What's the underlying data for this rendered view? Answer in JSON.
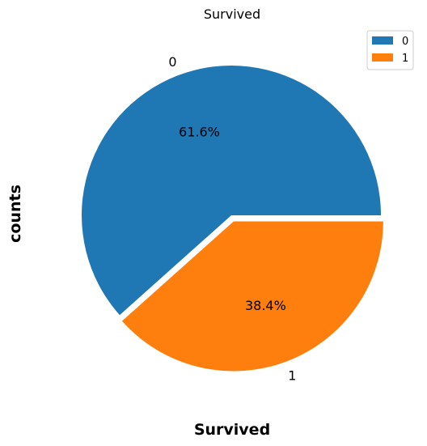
{
  "chart_data": {
    "type": "pie",
    "title": "Survived",
    "xlabel": "Survived",
    "ylabel": "counts",
    "categories": [
      "0",
      "1"
    ],
    "values": [
      61.6,
      38.4
    ],
    "percent_labels": [
      "61.6%",
      "38.4%"
    ],
    "colors": [
      "#1f77b4",
      "#ff7f0e"
    ],
    "legend": {
      "placement": "top-right",
      "entries": [
        "0",
        "1"
      ]
    }
  }
}
